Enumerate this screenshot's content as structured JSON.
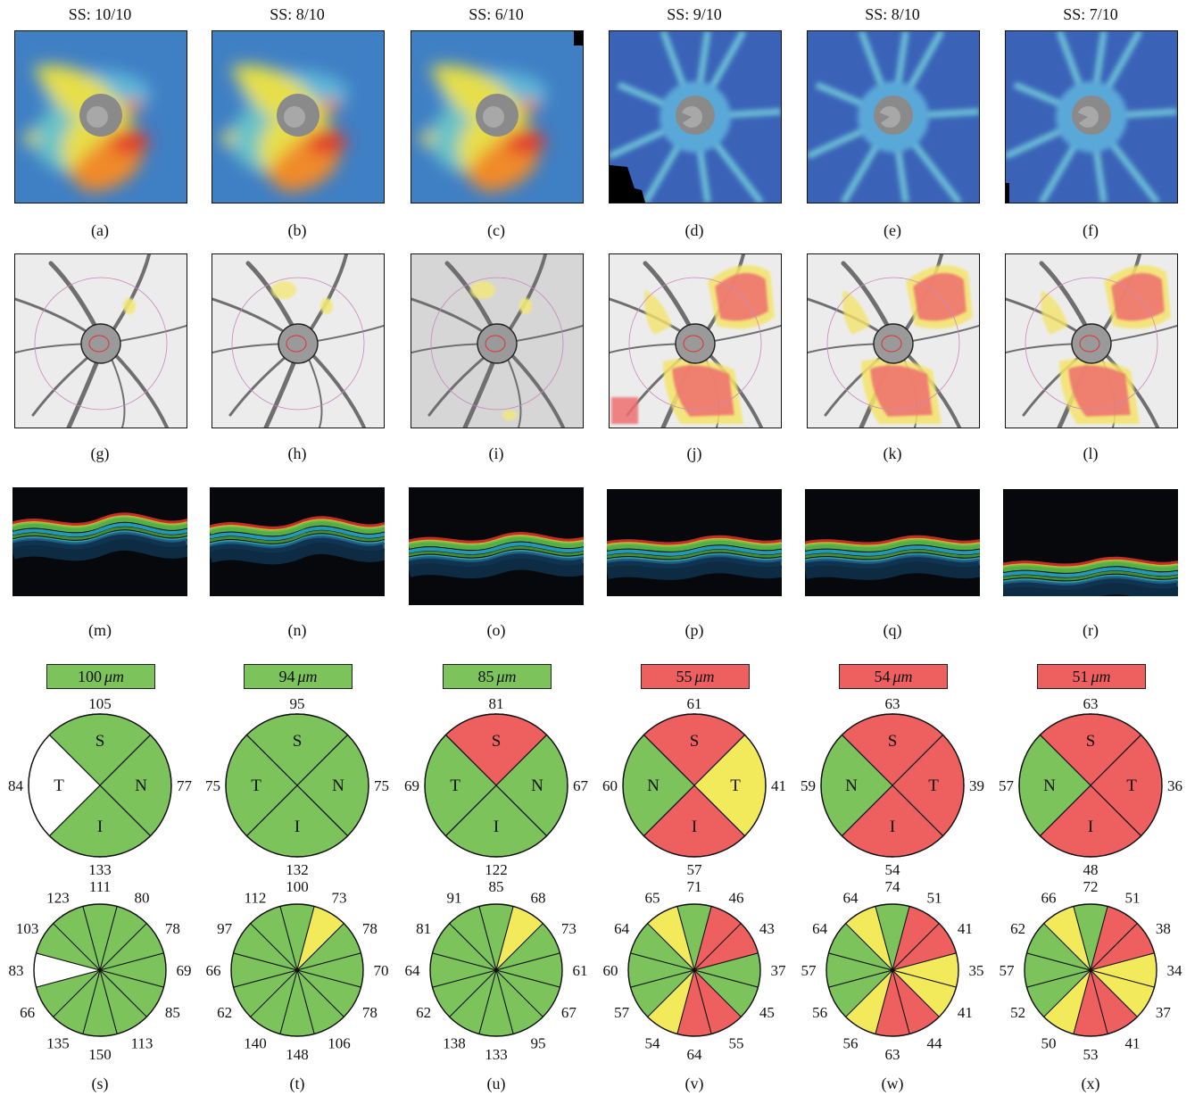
{
  "colors": {
    "green": "#7cc35c",
    "red": "#ee5f5f",
    "yellow": "#f2ea5a",
    "white": "#ffffff"
  },
  "ss_labels": [
    "SS: 10/10",
    "SS: 8/10",
    "SS: 6/10",
    "SS: 9/10",
    "SS: 8/10",
    "SS: 7/10"
  ],
  "row_labels": {
    "thickness_maps": [
      "(a)",
      "(b)",
      "(c)",
      "(d)",
      "(e)",
      "(f)"
    ],
    "deviation_maps": [
      "(g)",
      "(h)",
      "(i)",
      "(j)",
      "(k)",
      "(l)"
    ],
    "bscans": [
      "(m)",
      "(n)",
      "(o)",
      "(p)",
      "(q)",
      "(r)"
    ],
    "clock_hours": [
      "(s)",
      "(t)",
      "(u)",
      "(v)",
      "(w)",
      "(x)"
    ]
  },
  "average_thickness": [
    {
      "prefix": "100",
      "unit": "μm",
      "color": "green"
    },
    {
      "prefix": "94",
      "unit": "μm",
      "color": "green"
    },
    {
      "prefix": "85",
      "unit": "μm",
      "color": "green"
    },
    {
      "prefix": "55",
      "unit": "μm",
      "color": "red"
    },
    {
      "prefix": "54",
      "unit": "μm",
      "color": "red"
    },
    {
      "prefix": "51",
      "unit": "μm",
      "color": "red"
    }
  ],
  "quadrants": [
    {
      "order": [
        "S",
        "N",
        "I",
        "T"
      ],
      "letters": {
        "S": "S",
        "N": "N",
        "I": "I",
        "T": "T"
      },
      "values": {
        "top": "105",
        "right": "77",
        "bottom": "133",
        "left": "84"
      },
      "colors": {
        "S": "green",
        "N": "green",
        "I": "green",
        "T": "white"
      }
    },
    {
      "letters": {
        "S": "S",
        "N": "N",
        "I": "I",
        "T": "T"
      },
      "values": {
        "top": "95",
        "right": "75",
        "bottom": "132",
        "left": "75"
      },
      "colors": {
        "S": "green",
        "N": "green",
        "I": "green",
        "T": "green"
      }
    },
    {
      "letters": {
        "S": "S",
        "N": "N",
        "I": "I",
        "T": "T"
      },
      "values": {
        "top": "81",
        "right": "67",
        "bottom": "122",
        "left": "69"
      },
      "colors": {
        "S": "red",
        "N": "green",
        "I": "green",
        "T": "green"
      }
    },
    {
      "letters": {
        "S": "S",
        "N": "T",
        "I": "I",
        "T": "N"
      },
      "values": {
        "top": "61",
        "right": "41",
        "bottom": "57",
        "left": "60"
      },
      "colors": {
        "S": "red",
        "N": "yellow",
        "I": "red",
        "T": "green"
      }
    },
    {
      "letters": {
        "S": "S",
        "N": "T",
        "I": "I",
        "T": "N"
      },
      "values": {
        "top": "63",
        "right": "39",
        "bottom": "54",
        "left": "59"
      },
      "colors": {
        "S": "red",
        "N": "red",
        "I": "red",
        "T": "green"
      }
    },
    {
      "letters": {
        "S": "S",
        "N": "T",
        "I": "I",
        "T": "N"
      },
      "values": {
        "top": "63",
        "right": "36",
        "bottom": "48",
        "left": "57"
      },
      "colors": {
        "S": "red",
        "N": "red",
        "I": "red",
        "T": "green"
      }
    }
  ],
  "clock_hours": [
    {
      "values": [
        "111",
        "80",
        "78",
        "69",
        "85",
        "113",
        "150",
        "135",
        "66",
        "83",
        "103",
        "123"
      ],
      "colors": [
        "green",
        "green",
        "green",
        "green",
        "green",
        "green",
        "green",
        "green",
        "green",
        "white",
        "green",
        "green"
      ]
    },
    {
      "values": [
        "100",
        "73",
        "78",
        "70",
        "78",
        "106",
        "148",
        "140",
        "62",
        "66",
        "97",
        "112"
      ],
      "colors": [
        "green",
        "yellow",
        "green",
        "green",
        "green",
        "green",
        "green",
        "green",
        "green",
        "green",
        "green",
        "green"
      ]
    },
    {
      "values": [
        "85",
        "68",
        "73",
        "61",
        "67",
        "95",
        "133",
        "138",
        "62",
        "64",
        "81",
        "91"
      ],
      "colors": [
        "green",
        "yellow",
        "green",
        "green",
        "green",
        "green",
        "green",
        "green",
        "green",
        "green",
        "green",
        "green"
      ]
    },
    {
      "values": [
        "71",
        "46",
        "43",
        "37",
        "45",
        "55",
        "64",
        "54",
        "57",
        "60",
        "64",
        "65"
      ],
      "colors": [
        "green",
        "red",
        "red",
        "green",
        "green",
        "red",
        "red",
        "yellow",
        "green",
        "green",
        "green",
        "yellow"
      ]
    },
    {
      "values": [
        "74",
        "51",
        "41",
        "35",
        "41",
        "44",
        "63",
        "56",
        "56",
        "57",
        "64",
        "64"
      ],
      "colors": [
        "green",
        "red",
        "red",
        "yellow",
        "yellow",
        "red",
        "red",
        "yellow",
        "green",
        "green",
        "green",
        "yellow"
      ]
    },
    {
      "values": [
        "72",
        "51",
        "38",
        "34",
        "37",
        "41",
        "53",
        "50",
        "52",
        "57",
        "62",
        "66"
      ],
      "colors": [
        "green",
        "red",
        "red",
        "yellow",
        "yellow",
        "red",
        "red",
        "yellow",
        "green",
        "green",
        "green",
        "yellow"
      ]
    }
  ]
}
